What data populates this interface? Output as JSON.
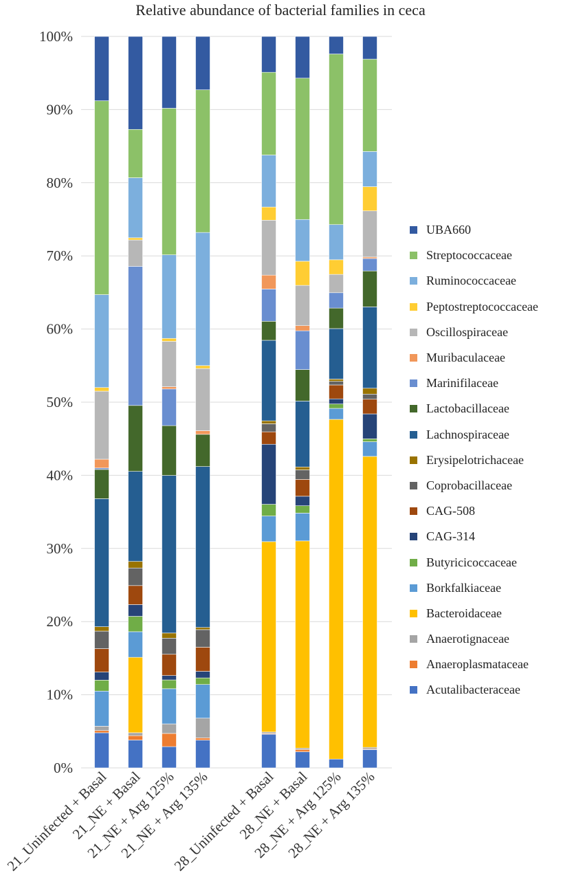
{
  "chart_data": {
    "type": "bar",
    "stacked": true,
    "title": "Relative abundance of bacterial families in ceca",
    "xlabel": "",
    "ylabel": "",
    "ylim": [
      0,
      100
    ],
    "yticks": [
      "0%",
      "10%",
      "20%",
      "30%",
      "40%",
      "50%",
      "60%",
      "70%",
      "80%",
      "90%",
      "100%"
    ],
    "categories": [
      "21_Uninfected + Basal",
      "21_NE + Basal",
      "21_NE + Arg 125%",
      "21_NE + Arg 135%",
      "28_Uninfected + Basal",
      "28_NE + Basal",
      "28_NE + Arg 125%",
      "28_NE + Arg 135%"
    ],
    "legend_position": "right",
    "series": [
      {
        "name": "Acutalibacteraceae",
        "color": "#4472C4",
        "values": [
          4.8,
          3.8,
          2.9,
          3.8,
          4.6,
          2.2,
          1.2,
          2.5
        ]
      },
      {
        "name": "Anaeroplasmataceae",
        "color": "#ED7D31",
        "values": [
          0.3,
          0.6,
          1.8,
          0.3,
          0.1,
          0.3,
          0.0,
          0.1
        ]
      },
      {
        "name": "Anaerotignaceae",
        "color": "#A5A5A5",
        "values": [
          0.6,
          0.4,
          1.3,
          2.7,
          0.2,
          0.2,
          0.0,
          0.2
        ]
      },
      {
        "name": "Bacteroidaceae",
        "color": "#FFC000",
        "values": [
          0.0,
          10.3,
          0.0,
          0.0,
          26.0,
          28.3,
          46.4,
          39.7
        ]
      },
      {
        "name": "Borkfalkiaceae",
        "color": "#5B9BD5",
        "values": [
          4.8,
          3.5,
          4.8,
          4.6,
          3.5,
          3.8,
          1.5,
          2.0
        ]
      },
      {
        "name": "Butyricicoccaceae",
        "color": "#70AD47",
        "values": [
          1.5,
          2.1,
          1.2,
          0.9,
          1.6,
          1.0,
          0.6,
          0.4
        ]
      },
      {
        "name": "CAG-314",
        "color": "#264478",
        "values": [
          1.1,
          1.6,
          0.6,
          0.9,
          8.2,
          1.3,
          0.7,
          3.4
        ]
      },
      {
        "name": "CAG-508",
        "color": "#9E480E",
        "values": [
          3.2,
          2.6,
          2.9,
          3.3,
          1.7,
          2.3,
          1.9,
          2.0
        ]
      },
      {
        "name": "Coprobacillaceae",
        "color": "#636363",
        "values": [
          2.4,
          2.4,
          2.2,
          2.4,
          1.1,
          1.3,
          0.5,
          0.7
        ]
      },
      {
        "name": "Erysipelotrichaceae",
        "color": "#997300",
        "values": [
          0.6,
          0.9,
          0.7,
          0.3,
          0.4,
          0.4,
          0.3,
          0.8
        ]
      },
      {
        "name": "Lachnospiraceae",
        "color": "#255E91",
        "values": [
          17.5,
          12.3,
          21.5,
          22.0,
          11.0,
          9.0,
          6.9,
          11.1
        ]
      },
      {
        "name": "Lactobacillaceae",
        "color": "#43682B",
        "values": [
          4.0,
          9.0,
          6.8,
          4.4,
          2.6,
          4.3,
          2.8,
          4.9
        ]
      },
      {
        "name": "Marinifilaceae",
        "color": "#698ED0",
        "values": [
          0.2,
          19.0,
          5.0,
          0.0,
          4.4,
          5.3,
          2.1,
          1.7
        ]
      },
      {
        "name": "Muribaculaceae",
        "color": "#F1975A",
        "values": [
          1.2,
          0.0,
          0.3,
          0.5,
          1.9,
          0.7,
          0.0,
          0.2
        ]
      },
      {
        "name": "Oscillospiraceae",
        "color": "#B7B7B7",
        "values": [
          9.3,
          3.6,
          6.2,
          8.5,
          7.5,
          5.5,
          2.5,
          6.3
        ]
      },
      {
        "name": "Peptostreptococcaceae",
        "color": "#FFCD33",
        "values": [
          0.5,
          0.3,
          0.4,
          0.4,
          1.8,
          3.3,
          2.0,
          3.3
        ]
      },
      {
        "name": "Ruminococcaceae",
        "color": "#7CAFDD",
        "values": [
          12.7,
          8.2,
          11.4,
          18.2,
          7.1,
          5.7,
          4.8,
          4.8
        ]
      },
      {
        "name": "Streptococcaceae",
        "color": "#8CC168",
        "values": [
          26.5,
          6.6,
          20.0,
          19.5,
          11.3,
          19.3,
          23.3,
          12.6
        ]
      },
      {
        "name": "UBA660",
        "color": "#335AA1",
        "values": [
          8.8,
          12.7,
          9.8,
          7.3,
          4.9,
          5.7,
          2.4,
          3.1
        ]
      }
    ]
  }
}
